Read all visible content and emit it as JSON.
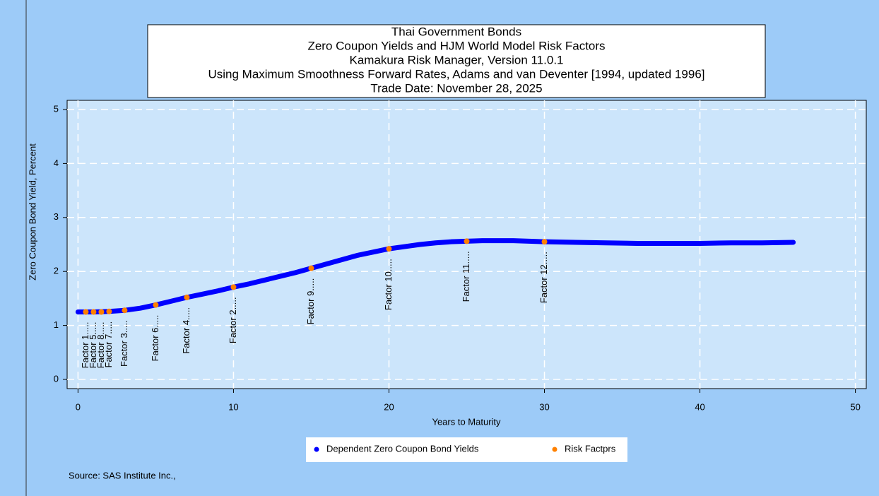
{
  "chart_data": {
    "type": "line",
    "title": [
      "Thai Government Bonds",
      "Zero Coupon Yields and HJM World Model Risk Factors",
      "Kamakura Risk Manager, Version 11.0.1",
      "Using Maximum Smoothness Forward Rates, Adams and van Deventer [1994, updated 1996]",
      "Trade Date: November 28, 2025"
    ],
    "xlabel": "Years to Maturity",
    "ylabel": "Zero Coupon Bond Yield, Percent",
    "source": "Source: SAS Institute Inc.,",
    "xlim": [
      -0.7,
      50.7
    ],
    "ylim": [
      -0.17,
      5.17
    ],
    "xticks": [
      0,
      10,
      20,
      30,
      40,
      50
    ],
    "yticks": [
      0,
      1,
      2,
      3,
      4,
      5
    ],
    "grid": true,
    "series": [
      {
        "name": "Dependent Zero Coupon Bond Yields",
        "color": "#0000ff",
        "type": "line",
        "x": [
          0,
          1,
          2,
          3,
          4,
          5,
          6,
          7,
          8,
          9,
          10,
          11,
          12,
          13,
          14,
          15,
          16,
          17,
          18,
          19,
          20,
          21,
          22,
          23,
          24,
          25,
          26,
          27,
          28,
          29,
          30,
          32,
          34,
          36,
          38,
          40,
          42,
          44,
          46
        ],
        "values": [
          1.25,
          1.25,
          1.26,
          1.28,
          1.32,
          1.38,
          1.45,
          1.52,
          1.58,
          1.64,
          1.71,
          1.77,
          1.84,
          1.91,
          1.98,
          2.06,
          2.14,
          2.22,
          2.3,
          2.36,
          2.42,
          2.46,
          2.5,
          2.53,
          2.55,
          2.56,
          2.57,
          2.57,
          2.57,
          2.56,
          2.55,
          2.54,
          2.53,
          2.52,
          2.52,
          2.52,
          2.53,
          2.53,
          2.54
        ]
      },
      {
        "name": "Risk Factprs",
        "color": "#ff8000",
        "type": "scatter",
        "x": [
          0.5,
          1,
          1.5,
          2,
          3,
          5,
          7,
          10,
          15,
          20,
          25,
          30
        ],
        "values": [
          1.25,
          1.25,
          1.25,
          1.26,
          1.28,
          1.38,
          1.52,
          1.71,
          2.06,
          2.42,
          2.56,
          2.55
        ],
        "labels": [
          "Factor 1.....",
          "Factor 5.....",
          "Factor 8.....",
          "Factor 7.....",
          "Factor 3.....",
          "Factor 6.....",
          "Factor 4.....",
          "Factor 2.....",
          "Factor 9.....",
          "Factor 10.....",
          "Factor 11.....",
          "Factor 12....."
        ]
      }
    ]
  }
}
